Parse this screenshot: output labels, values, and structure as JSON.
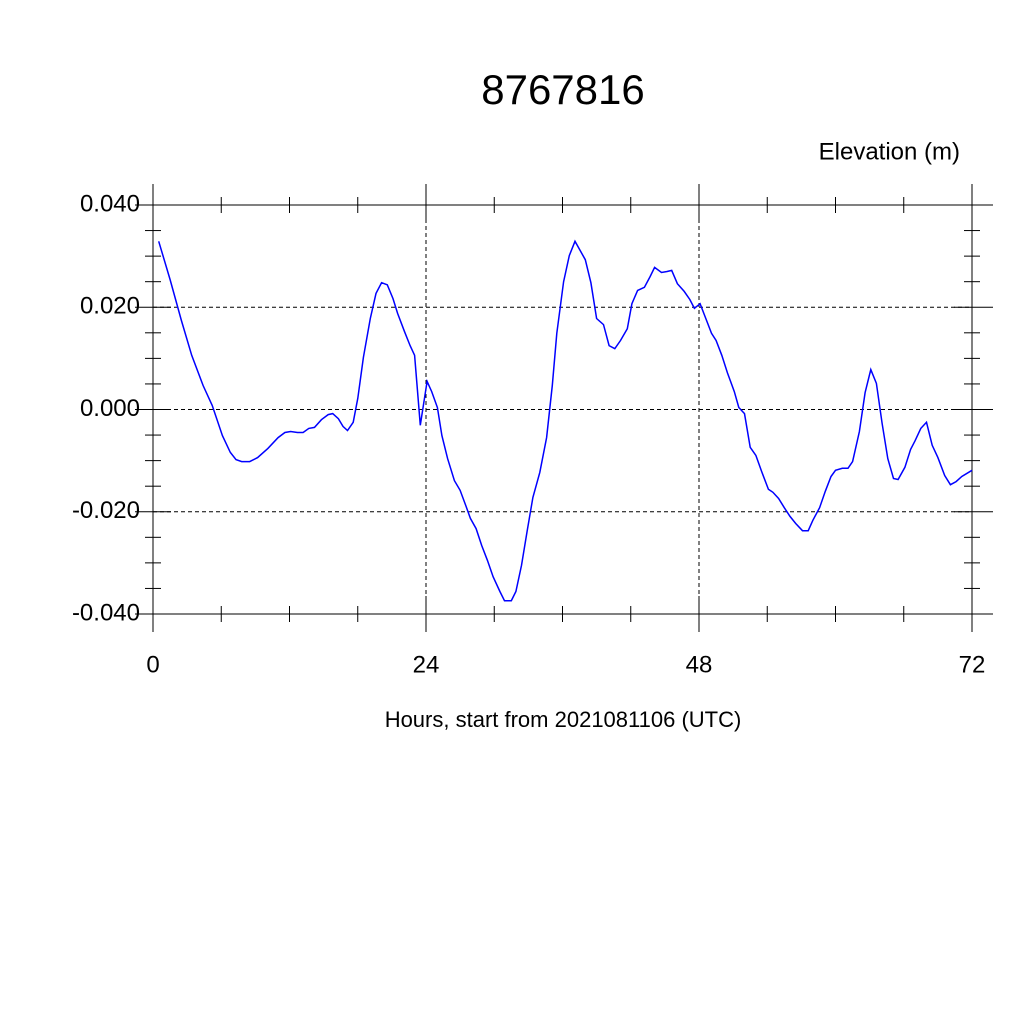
{
  "chart_data": {
    "type": "line",
    "title": "8767816",
    "y_label": "Elevation (m)",
    "x_label": "Hours, start from 2021081106 (UTC)",
    "xlim": [
      0,
      72
    ],
    "xticks": [
      0,
      24,
      48,
      72
    ],
    "ylim": [
      -0.04,
      0.04
    ],
    "yticks": [
      {
        "value": -0.04,
        "label": "-0.040"
      },
      {
        "value": -0.02,
        "label": "-0.020"
      },
      {
        "value": 0,
        "label": "0.000"
      },
      {
        "value": 0.02,
        "label": "0.020"
      },
      {
        "value": 0.04,
        "label": "0.040"
      }
    ],
    "grid": true,
    "series": [
      {
        "color": "#0000ff",
        "x": [
          0.5,
          1.5,
          2.5,
          3.4,
          4.4,
          5.2,
          6.1,
          6.8,
          7.3,
          7.8,
          8.5,
          9.2,
          10.1,
          11.0,
          11.6,
          12.1,
          12.7,
          13.2,
          13.7,
          14.2,
          14.8,
          15.4,
          15.8,
          16.3,
          16.7,
          17.1,
          17.6,
          18.0,
          18.5,
          19.1,
          19.6,
          20.1,
          20.6,
          21.1,
          21.5,
          22.1,
          22.6,
          23.0,
          23.5,
          24.1,
          24.5,
          25.0,
          25.4,
          25.9,
          26.5,
          27.0,
          27.5,
          27.9,
          28.4,
          28.9,
          29.4,
          29.9,
          30.5,
          30.9,
          31.5,
          31.9,
          32.4,
          32.9,
          33.4,
          34.0,
          34.6,
          35.1,
          35.5,
          36.1,
          36.6,
          37.1,
          37.5,
          38.0,
          38.5,
          39.0,
          39.6,
          40.1,
          40.6,
          41.1,
          41.7,
          42.1,
          42.6,
          43.2,
          43.7,
          44.1,
          44.7,
          45.2,
          45.6,
          46.1,
          46.7,
          47.2,
          47.6,
          48.1,
          48.6,
          49.1,
          49.5,
          50.0,
          50.5,
          51.1,
          51.5,
          52.0,
          52.5,
          53.0,
          53.5,
          54.1,
          54.5,
          55.0,
          55.5,
          56.0,
          56.5,
          57.1,
          57.6,
          58.0,
          58.6,
          59.1,
          59.6,
          60.0,
          60.6,
          61.1,
          61.5,
          62.1,
          62.6,
          63.1,
          63.6,
          64.1,
          64.6,
          65.1,
          65.5,
          66.1,
          66.6,
          67.0,
          67.5,
          68.0,
          68.5,
          69.0,
          69.6,
          70.1,
          70.6,
          71.1,
          72.0
        ],
        "values": [
          0.0329,
          0.0254,
          0.0174,
          0.0106,
          0.0047,
          0.0008,
          -0.0051,
          -0.0084,
          -0.0098,
          -0.0102,
          -0.0102,
          -0.0094,
          -0.0076,
          -0.0055,
          -0.0045,
          -0.0043,
          -0.0045,
          -0.0045,
          -0.0037,
          -0.0035,
          -0.002,
          -0.001,
          -0.0008,
          -0.0018,
          -0.0033,
          -0.0041,
          -0.0025,
          0.0022,
          0.0102,
          0.0178,
          0.0227,
          0.0248,
          0.0244,
          0.0217,
          0.0188,
          0.0153,
          0.0125,
          0.0106,
          -0.0031,
          0.0055,
          0.0035,
          0.0004,
          -0.0051,
          -0.0096,
          -0.0139,
          -0.0158,
          -0.0188,
          -0.0213,
          -0.0233,
          -0.0266,
          -0.0295,
          -0.0327,
          -0.0356,
          -0.0374,
          -0.0374,
          -0.0356,
          -0.0305,
          -0.0237,
          -0.0172,
          -0.0123,
          -0.0055,
          0.0047,
          0.0149,
          0.025,
          0.0301,
          0.0329,
          0.0313,
          0.0293,
          0.0248,
          0.0178,
          0.0166,
          0.0125,
          0.0119,
          0.0135,
          0.0158,
          0.0207,
          0.0233,
          0.0239,
          0.026,
          0.0278,
          0.0268,
          0.027,
          0.0272,
          0.0246,
          0.0231,
          0.0215,
          0.0198,
          0.0207,
          0.0178,
          0.0149,
          0.0135,
          0.0106,
          0.0072,
          0.0035,
          0.0004,
          -0.0008,
          -0.0074,
          -0.009,
          -0.0121,
          -0.0156,
          -0.0162,
          -0.0174,
          -0.0192,
          -0.0209,
          -0.0223,
          -0.0237,
          -0.0237,
          -0.0217,
          -0.0192,
          -0.016,
          -0.0131,
          -0.0119,
          -0.0115,
          -0.0115,
          -0.0102,
          -0.0043,
          0.0033,
          0.0078,
          0.0051,
          -0.0027,
          -0.0096,
          -0.0135,
          -0.0137,
          -0.0113,
          -0.0078,
          -0.0061,
          -0.0037,
          -0.0025,
          -0.007,
          -0.0094,
          -0.0129,
          -0.0147,
          -0.0141,
          -0.0131,
          -0.0119
        ]
      }
    ]
  }
}
